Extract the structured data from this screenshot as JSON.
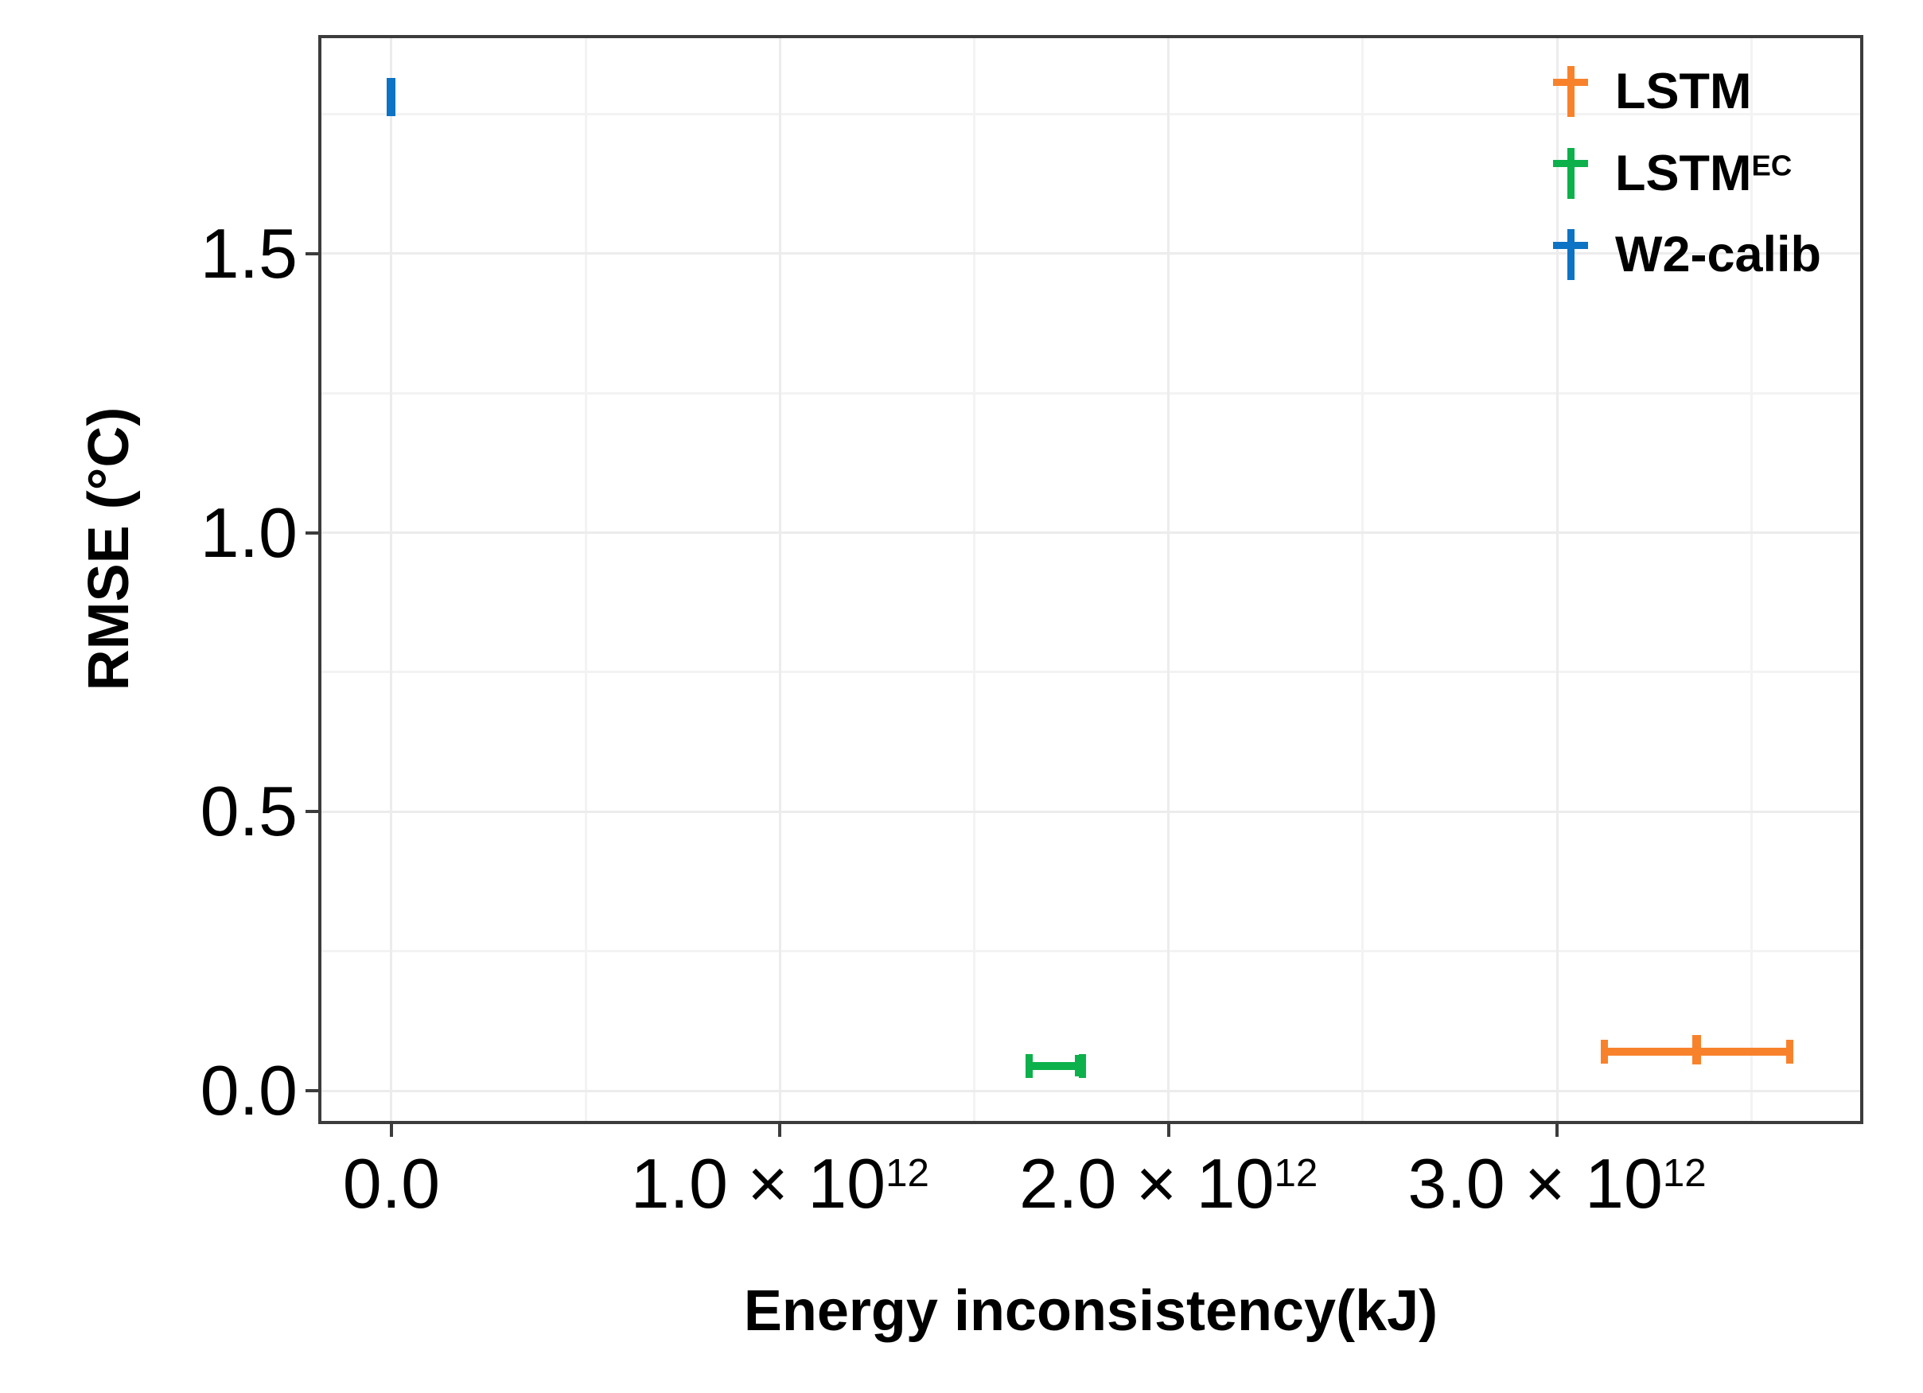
{
  "chart_data": {
    "type": "scatter",
    "title": "",
    "xlabel": "Energy inconsistency(kJ)",
    "ylabel": "RMSE (°C)",
    "grid": true,
    "legend_position": "top-right-inside",
    "xlim_e12": [
      -0.18,
      3.78
    ],
    "ylim": [
      -0.054,
      1.886
    ],
    "x_ticks": [
      {
        "v": 0.0,
        "base": "0.0",
        "sup": ""
      },
      {
        "v": 1.0,
        "base": "1.0 × 10",
        "sup": "12"
      },
      {
        "v": 2.0,
        "base": "2.0 × 10",
        "sup": "12"
      },
      {
        "v": 3.0,
        "base": "3.0 × 10",
        "sup": "12"
      }
    ],
    "y_ticks": [
      {
        "v": 0.0,
        "label": "0.0"
      },
      {
        "v": 0.5,
        "label": "0.5"
      },
      {
        "v": 1.0,
        "label": "1.0"
      },
      {
        "v": 1.5,
        "label": "1.5"
      }
    ],
    "x_minor_e12": [
      0.5,
      1.5,
      2.5,
      3.5
    ],
    "y_minor": [
      0.25,
      0.75,
      1.25,
      1.75
    ],
    "series": [
      {
        "name": "LSTM",
        "name_sup": "",
        "color": "#F8822C",
        "x_e12": 3.36,
        "x_lo_e12": 3.12,
        "x_hi_e12": 3.6,
        "y": 0.07,
        "y_lo": 0.047,
        "y_hi": 0.1
      },
      {
        "name": "LSTM",
        "name_sup": "EC",
        "color": "#0DB14B",
        "x_e12": 1.77,
        "x_lo_e12": 1.64,
        "x_hi_e12": 1.78,
        "y": 0.045,
        "y_lo": 0.026,
        "y_hi": 0.064
      },
      {
        "name": "W2-calib",
        "name_sup": "",
        "color": "#0D73C4",
        "x_e12": 0.0,
        "x_lo_e12": 0.0,
        "x_hi_e12": 0.0,
        "y": 1.78,
        "y_lo": 1.747,
        "y_hi": 1.815
      }
    ],
    "panel_border_color": "#3C3C3C",
    "grid_major_color": "#ECECEC",
    "grid_minor_color": "#F3F3F3"
  }
}
